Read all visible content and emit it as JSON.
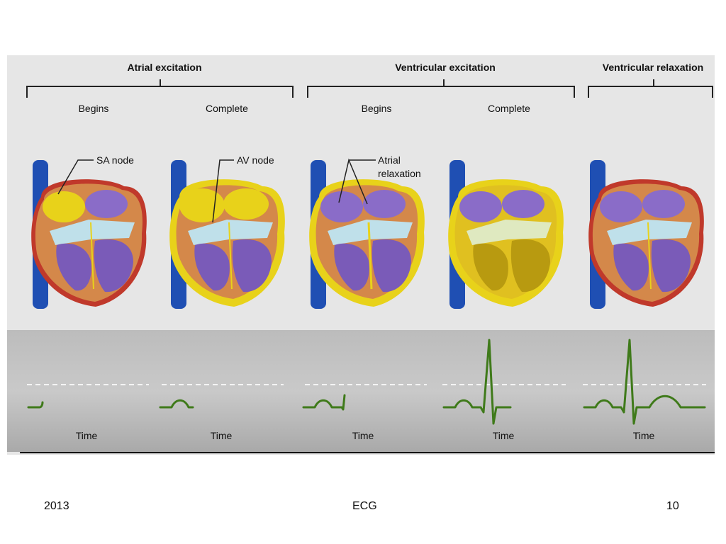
{
  "groups": [
    {
      "title": "Atrial excitation"
    },
    {
      "title": "Ventricular excitation"
    },
    {
      "title": "Ventricular relaxation"
    }
  ],
  "phases": [
    {
      "label": "Begins",
      "time_label": "Time"
    },
    {
      "label": "Complete",
      "time_label": "Time"
    },
    {
      "label": "Begins",
      "time_label": "Time"
    },
    {
      "label": "Complete",
      "time_label": "Time"
    },
    {
      "label": "",
      "time_label": "Time"
    }
  ],
  "callouts": {
    "sa_node": "SA node",
    "av_node": "AV node",
    "atrial_relaxation": [
      "Atrial",
      "relaxation"
    ]
  },
  "footer": {
    "year": "2013",
    "title": "ECG",
    "page": "10"
  },
  "colors": {
    "panel_bg": "#e6e6e6",
    "vein_blue": "#1f4fb3",
    "heart_wall": "#d4884a",
    "heart_outer": "#c0392b",
    "chamber_purple": "#8a6cc8",
    "valve_light": "#bfe0ea",
    "excited_yellow": "#e8d21a",
    "ecg_green": "#3f7a1a"
  }
}
